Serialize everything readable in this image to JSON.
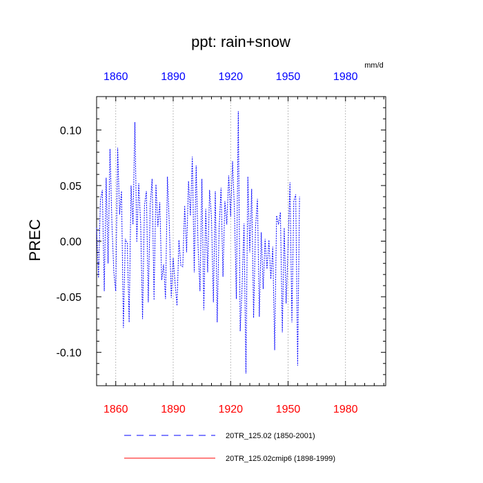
{
  "colors": {
    "series_1": "#0000ff",
    "series_2": "#ff0000",
    "top_ticks": "#0000ff",
    "bottom_ticks": "#ff0000",
    "grid": "#aaaaaa",
    "axis": "#000000"
  },
  "chart_data": {
    "type": "line",
    "title": "ppt: rain+snow",
    "units": "mm/d",
    "ylabel": "PREC",
    "xlabel": "",
    "xlim": [
      1850,
      2001
    ],
    "ylim": [
      -0.13,
      0.13
    ],
    "grid": "vertical dotted at top-axis ticks",
    "x_ticks_top": [
      1860,
      1890,
      1920,
      1950,
      1980
    ],
    "x_ticks_bottom": [
      1860,
      1890,
      1920,
      1950,
      1980
    ],
    "x_tick_labels_top": [
      "1860",
      "1890",
      "1920",
      "1950",
      "1980"
    ],
    "x_tick_labels_bottom": [
      "1860",
      "1890",
      "1920",
      "1950",
      "1980"
    ],
    "y_ticks": [
      -0.1,
      -0.05,
      0.0,
      0.05,
      0.1
    ],
    "y_tick_labels": [
      "-0.10",
      "-0.05",
      "0.00",
      "0.05",
      "0.10"
    ],
    "legend_position": "bottom",
    "series": [
      {
        "name": "20TR_125.02 (1850-2001)",
        "style": "dashed",
        "x_start": 1850,
        "values": [
          0.012,
          -0.033,
          0.037,
          0.046,
          -0.045,
          0.057,
          -0.02,
          0.083,
          0.016,
          -0.028,
          -0.045,
          0.084,
          0.024,
          0.045,
          -0.078,
          0.002,
          -0.002,
          -0.073,
          0.05,
          0.015,
          0.107,
          -0.001,
          0.052,
          0.016,
          -0.07,
          0.032,
          0.045,
          -0.055,
          0.033,
          0.056,
          -0.053,
          0.051,
          0.013,
          0.035,
          -0.035,
          -0.021,
          -0.052,
          0.058,
          0.014,
          -0.051,
          -0.015,
          -0.038,
          -0.058,
          0.001,
          -0.022,
          -0.023,
          0.032,
          -0.01,
          0.054,
          0.023,
          0.076,
          -0.028,
          0.068,
          -0.005,
          -0.045,
          0.056,
          -0.062,
          0.029,
          -0.028,
          0.046,
          0.021,
          -0.055,
          0.045,
          -0.073,
          0.012,
          0.048,
          -0.032,
          0.036,
          0.015,
          0.059,
          0.022,
          0.072,
          0.028,
          -0.052,
          0.117,
          -0.081,
          -0.04,
          0.016,
          -0.119,
          0.058,
          -0.01,
          0.047,
          -0.069,
          0.012,
          0.038,
          -0.068,
          0.008,
          -0.043,
          0.002,
          -0.025,
          0.001,
          -0.034,
          -0.005,
          -0.098,
          0.023,
          0.015,
          0.026,
          -0.082,
          0.012,
          -0.056,
          -0.005,
          0.053,
          -0.073,
          0.036,
          0.042,
          -0.112,
          0.04
        ]
      },
      {
        "name": "20TR_125.02cmip6 (1898-1999)",
        "style": "solid",
        "x_start": 1898,
        "values": []
      }
    ]
  }
}
